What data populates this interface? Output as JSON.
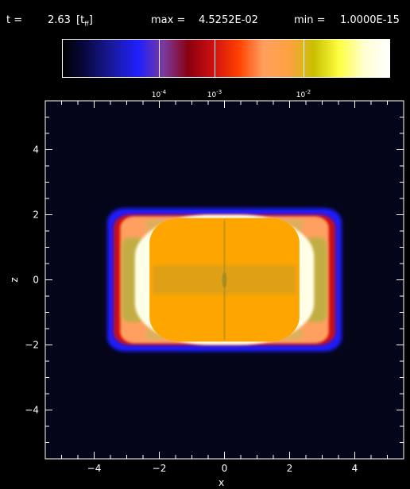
{
  "header": {
    "time_label": "t =",
    "time_value": "2.63",
    "time_unit": "[t",
    "time_unit_sub": "ff",
    "time_unit_close": "]",
    "max_label": "max =",
    "max_value": "4.5252E-02",
    "min_label": "min =",
    "min_value": "1.0000E-15"
  },
  "colorbar": {
    "scale": "log",
    "labels": [
      {
        "base": "10",
        "exp": "-4",
        "value": 0.0001
      },
      {
        "base": "10",
        "exp": "-3",
        "value": 0.001
      },
      {
        "base": "10",
        "exp": "-2",
        "value": 0.01
      }
    ],
    "colors": [
      "#000000",
      "#0a0a4a",
      "#1a1aa0",
      "#1f1fff",
      "#7a3aa0",
      "#8a0010",
      "#d01010",
      "#ff4000",
      "#ffa060",
      "#ffa040",
      "#c8c000",
      "#ffff40",
      "#ffffd0",
      "#ffffff"
    ]
  },
  "chart_data": {
    "type": "heatmap",
    "title": "",
    "xlabel": "x",
    "ylabel": "z",
    "xlim": [
      -5.5,
      5.5
    ],
    "ylim": [
      -5.5,
      5.5
    ],
    "x_ticks": [
      -4,
      -2,
      0,
      2,
      4
    ],
    "y_ticks": [
      -4,
      -2,
      0,
      2,
      4
    ],
    "structure": {
      "outer_shell": {
        "x_range": [
          -3.6,
          3.6
        ],
        "z_range": [
          -2.2,
          2.2
        ],
        "color": "#1f1fff"
      },
      "red_shell": {
        "x_range": [
          -3.4,
          3.4
        ],
        "z_range": [
          -2.0,
          2.0
        ],
        "color": "#d01010"
      },
      "orange_shell": {
        "x_range": [
          -3.2,
          3.2
        ],
        "z_range": [
          -1.95,
          1.95
        ],
        "color": "#ffa060"
      },
      "bright_ring": {
        "x_range": [
          -2.75,
          2.75
        ],
        "z_range": [
          -2.0,
          2.0
        ],
        "color": "#ffffe8"
      },
      "core": {
        "x_range": [
          -2.3,
          2.3
        ],
        "z_range": [
          -1.9,
          1.9
        ],
        "color": "#ffa500"
      },
      "background": "#05051a"
    }
  }
}
